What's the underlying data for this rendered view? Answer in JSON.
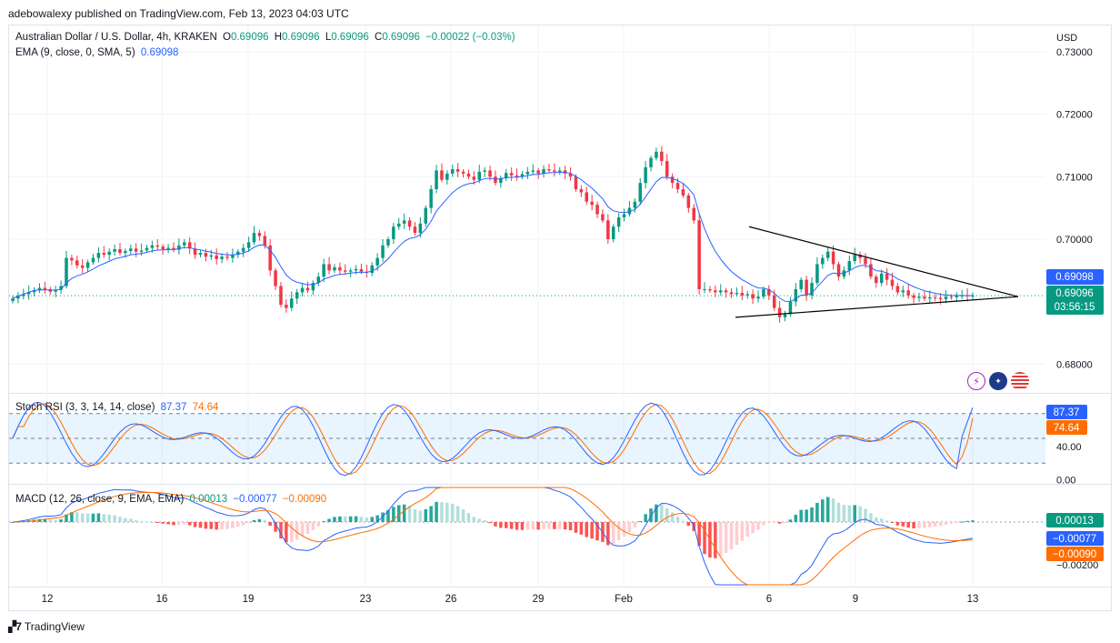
{
  "header": {
    "publisher_line": "adebowalexy published on TradingView.com, Feb 13, 2023 04:03 UTC"
  },
  "price_legend": {
    "symbol": "Australian Dollar / U.S. Dollar, 4h, KRAKEN",
    "o_label": "O",
    "o": "0.69096",
    "h_label": "H",
    "h": "0.69096",
    "l_label": "L",
    "l": "0.69096",
    "c_label": "C",
    "c": "0.69096",
    "change": "−0.00022 (−0.03%)",
    "ema_label": "EMA (9, close, 0, SMA, 5)",
    "ema_value": "0.69098"
  },
  "stoch_legend": {
    "label": "Stoch RSI (3, 3, 14, 14, close)",
    "k": "87.37",
    "d": "74.64"
  },
  "macd_legend": {
    "label": "MACD (12, 26, close, 9, EMA, EMA)",
    "hist": "0.00013",
    "macd": "−0.00077",
    "signal": "−0.00090"
  },
  "footer": {
    "brand": "TradingView"
  },
  "icons": [
    "flash-icon",
    "au-flag-icon",
    "us-flag-icon"
  ],
  "colors": {
    "up": "#089981",
    "down": "#f23645",
    "ema": "#2962ff",
    "stoch_k": "#2962ff",
    "stoch_d": "#ff6d00",
    "macd": "#2962ff",
    "signal": "#ff6d00",
    "hist_up_strong": "#26a69a",
    "hist_up_weak": "#b2dfdb",
    "hist_down_strong": "#ff5252",
    "hist_down_weak": "#ffcdd2"
  },
  "chart_data": [
    {
      "type": "candlestick",
      "title": "Australian Dollar / U.S. Dollar, 4h, KRAKEN",
      "currency_label": "USD",
      "y_ticks": [
        "0.73000",
        "0.72000",
        "0.71000",
        "0.70000",
        "0.68000"
      ],
      "ylim": [
        0.6754,
        0.7342
      ],
      "x_ticks": [
        "12",
        "16",
        "19",
        "23",
        "26",
        "29",
        "Feb",
        "6",
        "9",
        "13"
      ],
      "price_badges": [
        {
          "label": "ema",
          "value": "0.69098"
        },
        {
          "label": "price",
          "value": "0.69096",
          "countdown": "03:56:15"
        }
      ],
      "triangle": {
        "upper": [
          [
            0.702,
            0.2
          ],
          [
            0.6908,
            1.0
          ]
        ],
        "lower": [
          [
            0.6875,
            0.2
          ],
          [
            0.6908,
            1.0
          ]
        ]
      },
      "closes": [
        0.6905,
        0.6909,
        0.6912,
        0.6915,
        0.6918,
        0.6922,
        0.692,
        0.6916,
        0.6919,
        0.6925,
        0.697,
        0.6966,
        0.6958,
        0.6954,
        0.6963,
        0.697,
        0.6978,
        0.6975,
        0.698,
        0.6984,
        0.6978,
        0.6981,
        0.6985,
        0.698,
        0.6982,
        0.6986,
        0.699,
        0.6988,
        0.6984,
        0.6986,
        0.6983,
        0.699,
        0.6995,
        0.6985,
        0.6975,
        0.6978,
        0.6972,
        0.6974,
        0.6968,
        0.6972,
        0.697,
        0.6975,
        0.698,
        0.6986,
        0.6995,
        0.701,
        0.7005,
        0.699,
        0.695,
        0.6925,
        0.6895,
        0.689,
        0.6905,
        0.6915,
        0.6922,
        0.6918,
        0.693,
        0.694,
        0.696,
        0.695,
        0.6955,
        0.695,
        0.6948,
        0.695,
        0.6952,
        0.6948,
        0.6946,
        0.6958,
        0.697,
        0.699,
        0.7,
        0.702,
        0.7025,
        0.703,
        0.702,
        0.701,
        0.7025,
        0.705,
        0.708,
        0.711,
        0.7095,
        0.7105,
        0.7112,
        0.7108,
        0.7105,
        0.71,
        0.7095,
        0.7108,
        0.711,
        0.71,
        0.709,
        0.7098,
        0.7106,
        0.7102,
        0.71,
        0.7104,
        0.7108,
        0.711,
        0.7105,
        0.7112,
        0.711,
        0.7108,
        0.711,
        0.7105,
        0.71,
        0.708,
        0.7075,
        0.706,
        0.7055,
        0.704,
        0.703,
        0.7,
        0.702,
        0.7035,
        0.704,
        0.705,
        0.706,
        0.709,
        0.7115,
        0.713,
        0.714,
        0.7125,
        0.71,
        0.709,
        0.708,
        0.707,
        0.705,
        0.703,
        0.692,
        0.692,
        0.6918,
        0.6915,
        0.6918,
        0.6915,
        0.6912,
        0.6914,
        0.691,
        0.6912,
        0.6905,
        0.6908,
        0.692,
        0.691,
        0.689,
        0.6875,
        0.688,
        0.69,
        0.692,
        0.6935,
        0.691,
        0.693,
        0.696,
        0.697,
        0.698,
        0.696,
        0.694,
        0.695,
        0.6965,
        0.6975,
        0.697,
        0.696,
        0.694,
        0.693,
        0.6945,
        0.6935,
        0.6925,
        0.6915,
        0.6918,
        0.691,
        0.6906,
        0.6908,
        0.6905,
        0.6907,
        0.6906,
        0.6904,
        0.6908,
        0.6907,
        0.6909,
        0.691,
        0.6909,
        0.69096
      ]
    },
    {
      "type": "line",
      "title": "Stoch RSI (3, 3, 14, 14, close)",
      "y_ticks": [
        "40.00",
        "0.00"
      ],
      "ylim": [
        -5,
        105
      ],
      "bands": [
        80,
        50,
        20
      ],
      "series": [
        {
          "name": "K",
          "last": "87.37"
        },
        {
          "name": "D",
          "last": "74.64"
        }
      ]
    },
    {
      "type": "bar",
      "title": "MACD (12, 26, close, 9, EMA, EMA)",
      "y_ticks": [
        "−0.00200"
      ],
      "series": [
        {
          "name": "Histogram",
          "last": "0.00013"
        },
        {
          "name": "MACD",
          "last": "−0.00077"
        },
        {
          "name": "Signal",
          "last": "−0.00090"
        }
      ]
    }
  ]
}
